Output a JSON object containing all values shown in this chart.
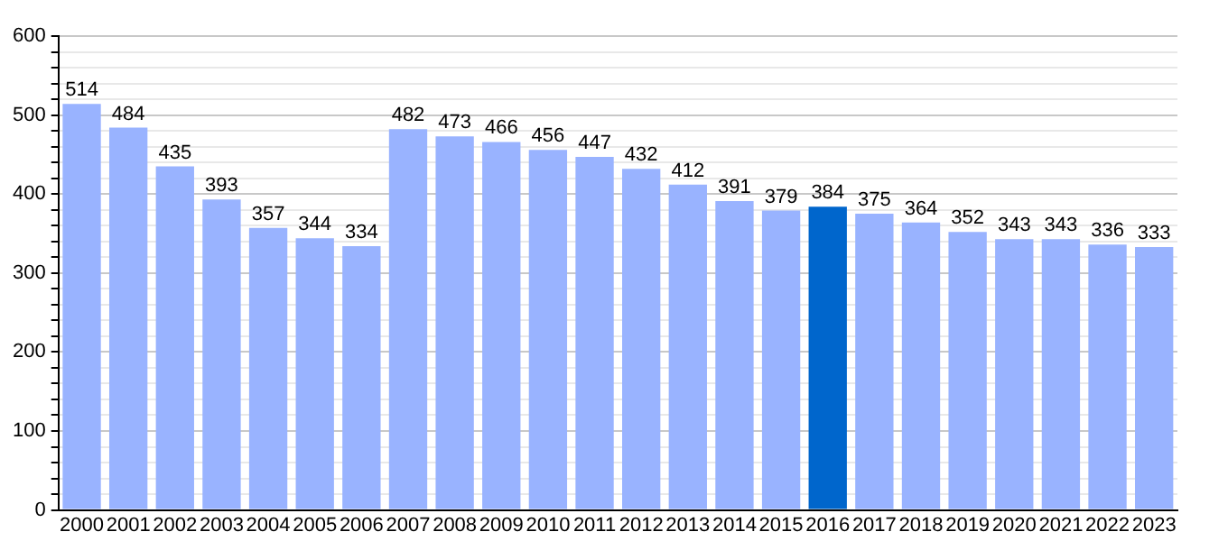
{
  "chart_data": {
    "type": "bar",
    "categories": [
      "2000",
      "2001",
      "2002",
      "2003",
      "2004",
      "2005",
      "2006",
      "2007",
      "2008",
      "2009",
      "2010",
      "2011",
      "2012",
      "2013",
      "2014",
      "2015",
      "2016",
      "2017",
      "2018",
      "2019",
      "2020",
      "2021",
      "2022",
      "2023"
    ],
    "values": [
      514,
      484,
      435,
      393,
      357,
      344,
      334,
      482,
      473,
      466,
      456,
      447,
      432,
      412,
      391,
      379,
      384,
      375,
      364,
      352,
      343,
      343,
      336,
      333
    ],
    "colors": [
      "#99b3ff",
      "#99b3ff",
      "#99b3ff",
      "#99b3ff",
      "#99b3ff",
      "#99b3ff",
      "#99b3ff",
      "#99b3ff",
      "#99b3ff",
      "#99b3ff",
      "#99b3ff",
      "#99b3ff",
      "#99b3ff",
      "#99b3ff",
      "#99b3ff",
      "#99b3ff",
      "#0066cc",
      "#99b3ff",
      "#99b3ff",
      "#99b3ff",
      "#99b3ff",
      "#99b3ff",
      "#99b3ff",
      "#99b3ff"
    ],
    "ylim": [
      0,
      600
    ],
    "yticks": [
      0,
      {
        "value": 20,
        "label": null
      },
      {
        "value": 40,
        "label": null
      },
      {
        "value": 60,
        "label": null
      },
      {
        "value": 80,
        "label": null
      },
      100,
      {
        "value": 120,
        "label": null
      },
      {
        "value": 140,
        "label": null
      },
      {
        "value": 160,
        "label": null
      },
      {
        "value": 180,
        "label": null
      },
      200,
      {
        "value": 220,
        "label": null
      },
      {
        "value": 240,
        "label": null
      },
      {
        "value": 260,
        "label": null
      },
      {
        "value": 280,
        "label": null
      },
      300,
      {
        "value": 320,
        "label": null
      },
      {
        "value": 340,
        "label": null
      },
      {
        "value": 360,
        "label": null
      },
      {
        "value": 380,
        "label": null
      },
      400,
      {
        "value": 420,
        "label": null
      },
      {
        "value": 440,
        "label": null
      },
      {
        "value": 460,
        "label": null
      },
      {
        "value": 480,
        "label": null
      },
      500,
      {
        "value": 520,
        "label": null
      },
      {
        "value": 540,
        "label": null
      },
      {
        "value": 560,
        "label": null
      },
      {
        "value": 580,
        "label": null
      },
      600
    ],
    "grid": "y",
    "data_labels": true,
    "legend": false
  }
}
